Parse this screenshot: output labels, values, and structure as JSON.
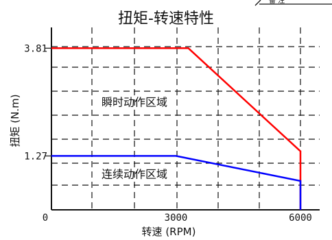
{
  "chart_data": {
    "type": "line",
    "title": "扭矩-转速特性",
    "xlabel": "转速 (RPM)",
    "ylabel": "扭矩 (N.m)",
    "xlim": [
      0,
      6000
    ],
    "ylim": [
      0,
      4.3
    ],
    "xticks": [
      0,
      3000,
      6000
    ],
    "xtick_labels": [
      "0",
      "3000",
      "6000"
    ],
    "yticks": [
      1.27,
      3.81
    ],
    "ytick_labels": [
      "1.27",
      "3.81"
    ],
    "grid": true,
    "series": [
      {
        "name": "",
        "color": "#ff0000",
        "points": [
          [
            0,
            3.81
          ],
          [
            3300,
            3.81
          ],
          [
            6000,
            1.38
          ],
          [
            6000,
            0
          ]
        ]
      },
      {
        "name": "",
        "color": "#0000ff",
        "points": [
          [
            0,
            1.27
          ],
          [
            3000,
            1.27
          ],
          [
            6000,
            0.68
          ],
          [
            6000,
            0
          ]
        ]
      }
    ],
    "annotations": [
      {
        "text": "瞬时动作区域",
        "x": 2000,
        "y": 2.55
      },
      {
        "text": "连续动作区域",
        "x": 2000,
        "y": 0.85
      }
    ]
  },
  "corner_label": "备 注"
}
